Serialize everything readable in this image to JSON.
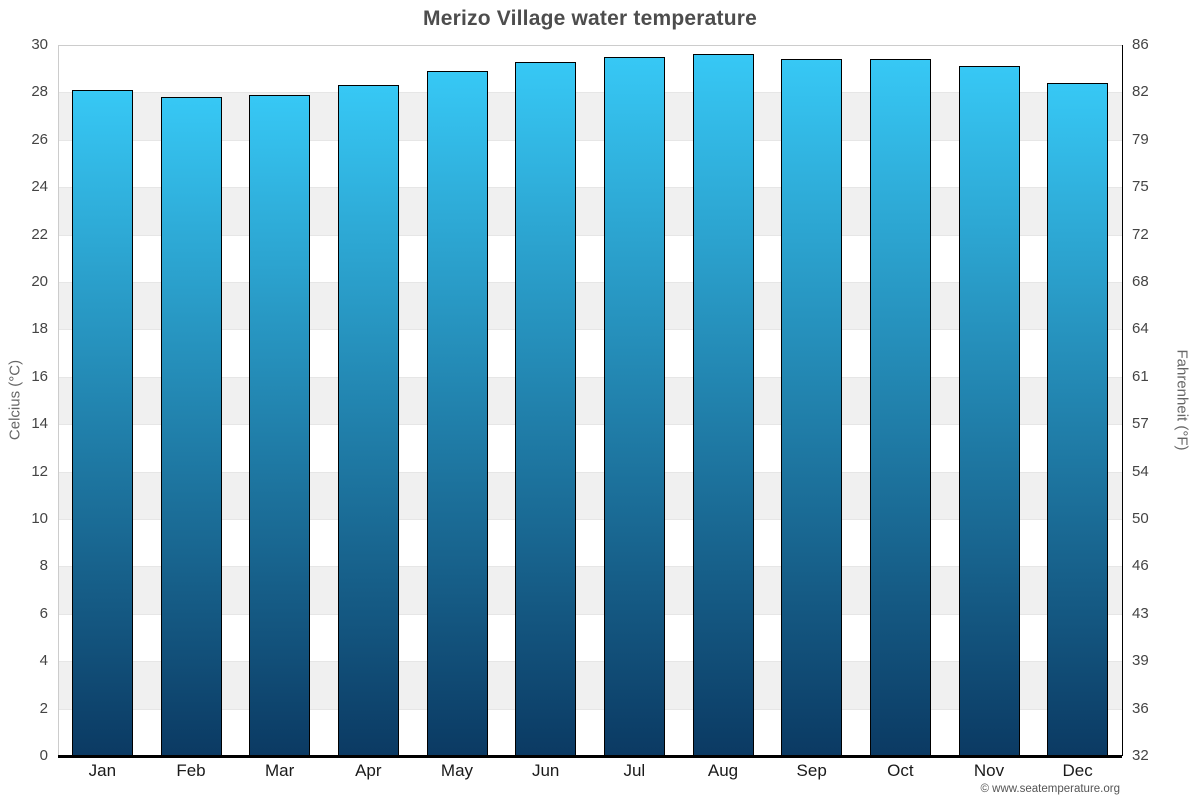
{
  "chart_data": {
    "type": "bar",
    "title": "Merizo Village water temperature",
    "categories": [
      "Jan",
      "Feb",
      "Mar",
      "Apr",
      "May",
      "Jun",
      "Jul",
      "Aug",
      "Sep",
      "Oct",
      "Nov",
      "Dec"
    ],
    "values": [
      28.1,
      27.8,
      27.9,
      28.3,
      28.9,
      29.3,
      29.5,
      29.6,
      29.4,
      29.4,
      29.1,
      28.4
    ],
    "ylabel_left": "Celcius (°C)",
    "ylabel_right": "Fahrenheit (°F)",
    "ylim": [
      0,
      30
    ],
    "yticks_left": [
      "30",
      "28",
      "26",
      "24",
      "22",
      "20",
      "18",
      "16",
      "14",
      "12",
      "10",
      "8",
      "6",
      "4",
      "2",
      "0"
    ],
    "yticks_right": [
      "86",
      "82",
      "79",
      "75",
      "72",
      "68",
      "64",
      "61",
      "57",
      "54",
      "50",
      "46",
      "43",
      "39",
      "36",
      "32"
    ],
    "grid": "horizontal alternating bands every 2°C",
    "legend": "none"
  },
  "footer": {
    "credit": "© www.seatemperature.org"
  },
  "colors": {
    "bar_gradient_top": "#37c8f5",
    "bar_gradient_bottom": "#0b3a63",
    "bar_border": "#000000",
    "band_gray": "#f0f0f0",
    "gridline": "#e6e6e6",
    "plot_border_light": "#cccccc",
    "axis_dark": "#000000",
    "title_text": "#4d4d4d",
    "tick_text": "#444444",
    "axis_title_text": "#666666",
    "credit_text": "#555555"
  }
}
